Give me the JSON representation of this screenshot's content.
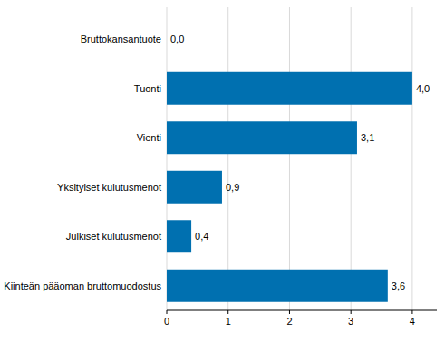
{
  "chart_data": {
    "type": "bar",
    "orientation": "horizontal",
    "categories": [
      "Bruttokansantuote",
      "Tuonti",
      "Vienti",
      "Yksityiset kulutusmenot",
      "Julkiset kulutusmenot",
      "Kiinteän pääoman bruttomuodostus"
    ],
    "values": [
      0.0,
      4.0,
      3.1,
      0.9,
      0.4,
      3.6
    ],
    "value_labels": [
      "0,0",
      "4,0",
      "3,1",
      "0,9",
      "0,4",
      "3,6"
    ],
    "color": "#0070b0",
    "xlim": [
      0,
      4.4
    ],
    "xticks": [
      0,
      1,
      2,
      3,
      4
    ],
    "grid": true,
    "data_labels": true
  }
}
